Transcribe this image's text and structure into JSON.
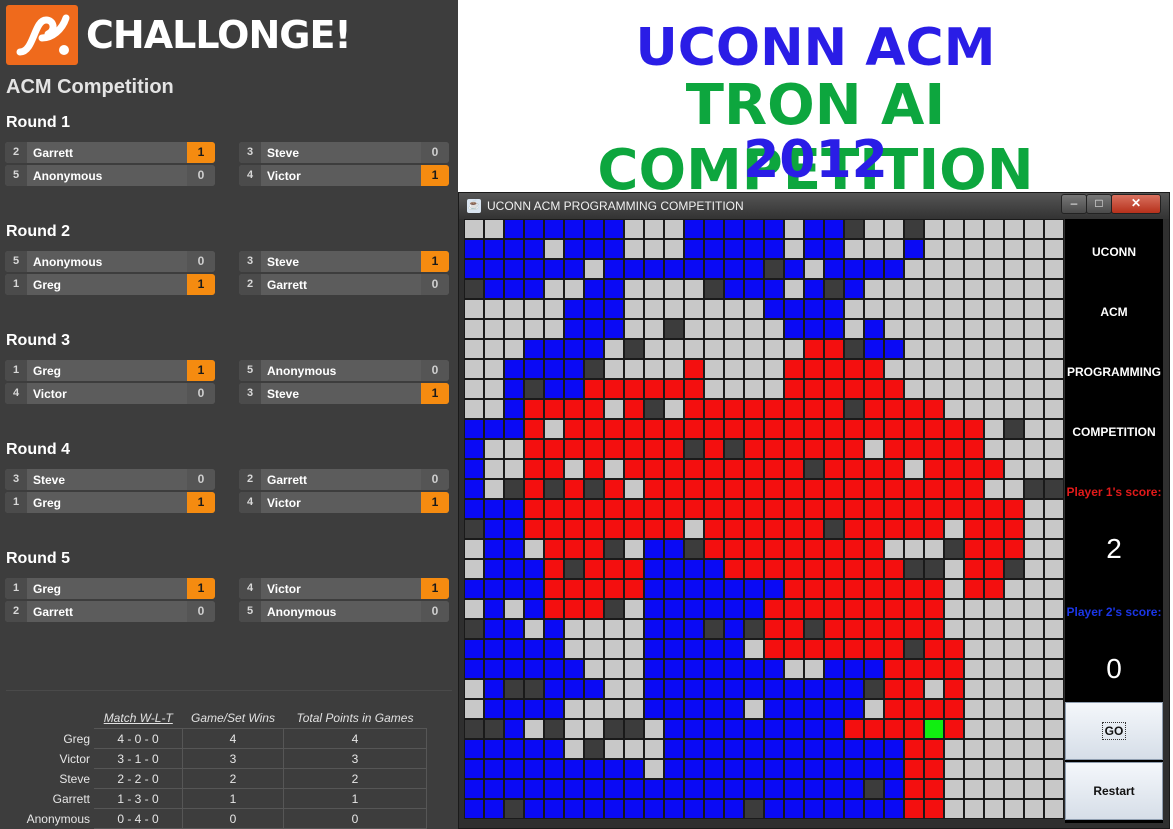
{
  "challonge": {
    "logo_text": "CHALLONGE!",
    "competition_title": "ACM Competition",
    "rounds": [
      {
        "label": "Round 1",
        "matches": [
          {
            "players": [
              {
                "seed": "2",
                "name": "Garrett",
                "score": "1",
                "win": true
              },
              {
                "seed": "5",
                "name": "Anonymous",
                "score": "0",
                "win": false
              }
            ]
          },
          {
            "players": [
              {
                "seed": "3",
                "name": "Steve",
                "score": "0",
                "win": false
              },
              {
                "seed": "4",
                "name": "Victor",
                "score": "1",
                "win": true
              }
            ]
          }
        ]
      },
      {
        "label": "Round 2",
        "matches": [
          {
            "players": [
              {
                "seed": "5",
                "name": "Anonymous",
                "score": "0",
                "win": false
              },
              {
                "seed": "1",
                "name": "Greg",
                "score": "1",
                "win": true
              }
            ]
          },
          {
            "players": [
              {
                "seed": "3",
                "name": "Steve",
                "score": "1",
                "win": true
              },
              {
                "seed": "2",
                "name": "Garrett",
                "score": "0",
                "win": false
              }
            ]
          }
        ]
      },
      {
        "label": "Round 3",
        "matches": [
          {
            "players": [
              {
                "seed": "1",
                "name": "Greg",
                "score": "1",
                "win": true
              },
              {
                "seed": "4",
                "name": "Victor",
                "score": "0",
                "win": false
              }
            ]
          },
          {
            "players": [
              {
                "seed": "5",
                "name": "Anonymous",
                "score": "0",
                "win": false
              },
              {
                "seed": "3",
                "name": "Steve",
                "score": "1",
                "win": true
              }
            ]
          }
        ]
      },
      {
        "label": "Round 4",
        "matches": [
          {
            "players": [
              {
                "seed": "3",
                "name": "Steve",
                "score": "0",
                "win": false
              },
              {
                "seed": "1",
                "name": "Greg",
                "score": "1",
                "win": true
              }
            ]
          },
          {
            "players": [
              {
                "seed": "2",
                "name": "Garrett",
                "score": "0",
                "win": false
              },
              {
                "seed": "4",
                "name": "Victor",
                "score": "1",
                "win": true
              }
            ]
          }
        ]
      },
      {
        "label": "Round 5",
        "matches": [
          {
            "players": [
              {
                "seed": "1",
                "name": "Greg",
                "score": "1",
                "win": true
              },
              {
                "seed": "2",
                "name": "Garrett",
                "score": "0",
                "win": false
              }
            ]
          },
          {
            "players": [
              {
                "seed": "4",
                "name": "Victor",
                "score": "1",
                "win": true
              },
              {
                "seed": "5",
                "name": "Anonymous",
                "score": "0",
                "win": false
              }
            ]
          }
        ]
      }
    ],
    "standings": {
      "headers": [
        "Match W-L-T",
        "Game/Set Wins",
        "Total Points in Games"
      ],
      "rows": [
        {
          "name": "Greg",
          "wlt": "4 - 0 - 0",
          "wins": "4",
          "points": "4"
        },
        {
          "name": "Victor",
          "wlt": "3 - 1 - 0",
          "wins": "3",
          "points": "3"
        },
        {
          "name": "Steve",
          "wlt": "2 - 2 - 0",
          "wins": "2",
          "points": "2"
        },
        {
          "name": "Garrett",
          "wlt": "1 - 3 - 0",
          "wins": "1",
          "points": "1"
        },
        {
          "name": "Anonymous",
          "wlt": "0 - 4 - 0",
          "wins": "0",
          "points": "0"
        }
      ]
    }
  },
  "header": {
    "line1": "UCONN ACM",
    "line2": "TRON AI COMPETITION",
    "line3": "2012"
  },
  "game_window": {
    "title": "UCONN ACM PROGRAMMING COMPETITION",
    "controls": {
      "minimize": "–",
      "maximize": "□",
      "close": "✕"
    },
    "side_panel": {
      "labels": [
        "UCONN",
        "ACM",
        "PROGRAMMING",
        "COMPETITION"
      ],
      "player1_label": "Player 1's score:",
      "player1_score": "2",
      "player2_label": "Player 2's score:",
      "player2_score": "0",
      "go_button": "GO",
      "restart_button": "Restart"
    },
    "board": {
      "columns": 30,
      "rows": 30,
      "palette": {
        "G": "#c8c8c8",
        "B": "#0a0af5",
        "R": "#f40f0f",
        "D": "#3c3c3c",
        "L": "#11ee11"
      },
      "cells": [
        "GGBBBBBBGGGBBBBBGBBDGGDGGGGGGG",
        "BBBBGBBBGGGBBBBBGBBGGGBGGGGGGG",
        "BBBBBBGBBBBBBBBDBGBBBBGGGGGGGG",
        "DBBBGGBBGGGGDBBBGBDBGGGGGGGGGG",
        "GGGGGBBBGGGGGGGBBBBGGGGGGGGGGG",
        "GGGGGBBBGGDGGGGGBBBGBGGGGGGGGG",
        "GGGBBBBGDGGGGGGGGRRDBBGGGGGGGG",
        "GGBBBBDGGGGRGGGGRRRRRGGGGGGGGG",
        "GGBDBBRRRRRRGGGGRRRRRRGGGGGGGG",
        "GGBRRRRGRDGRRRRRRRRDRRRRGGGGGG",
        "BBBRGRRRRRRRRRRRRRRRRRRRRRGDGG",
        "BGGRRRRRRRRDRDRRRRRRGRRRRRGGGG",
        "BGGRRGRGRRRRRRRRRDRRRRGRRRRGGG",
        "BGDRDRDRGRRRRRRRRRRRRRRRRRGGDD",
        "BBBRRRRRRRRRRRRRRRRRRRRRRRRRGG",
        "DBBRRRRRRRRGRRRRRRDRRRRRGRRRGG",
        "GBBGRRRDGBBDRRRRRRRRRGGGDRRRGG",
        "GBBBRDRRRBBBBRRRRRRRRRDDGRRDGG",
        "BBBBRRRRRBBBBBBBRRRRRRRRGRRGGG",
        "GBGBRRRDGBBBBBBRRRRRRRRRGGGGGG",
        "DBBGBGGGGBBBDBDRRDRRRRRRGGGGGG",
        "BBBBBGGGGBBBBBGRRRRRRRDRRGGGGG",
        "BBBBBBGGGBBBBBBBGGBBBRRRRGGGGG",
        "GBDDBBBGGBBBBBBBBBBBDRRGRGGGGG",
        "GBBBBGGGGBBBBBGBBBBBGRRRRGGGGG",
        "DDBGDGGDDGBBBBBBBBBRRRRLRGGGGG",
        "BBBBBGDGGGBBBBBBBBBBBBRRGGGGGG",
        "BBBBBBBBBGBBBBBBBBBBBBRRGGGGGG",
        "BBBBBBBBBBBBBBBBBBBBDBRRGGGGGG",
        "BBDBBBBBBBBBBBDBBBBBBBRRGGGGGG"
      ]
    }
  }
}
